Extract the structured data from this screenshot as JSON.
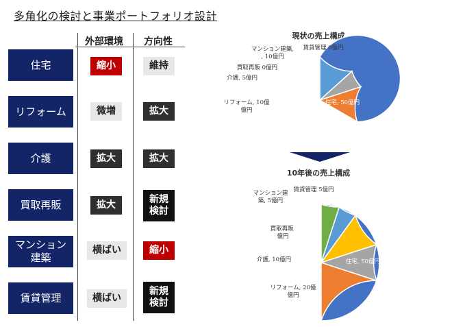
{
  "title": "多角化の検討と事業ポートフォリオ設計",
  "headers": {
    "env": "外部環境",
    "dir": "方向性"
  },
  "rows": [
    {
      "segment": "住宅",
      "env": "縮小",
      "dir": "維持"
    },
    {
      "segment": "リフォーム",
      "env": "微増",
      "dir": "拡大"
    },
    {
      "segment": "介護",
      "env": "拡大",
      "dir": "拡大"
    },
    {
      "segment": "買取再販",
      "env": "拡大",
      "dir": "新規\n検討"
    },
    {
      "segment": "マンション\n建築",
      "env": "横ばい",
      "dir": "縮小"
    },
    {
      "segment": "賃貸管理",
      "env": "横ばい",
      "dir": "新規\n検討"
    }
  ],
  "colors": {
    "navy": "#142567",
    "red": "#c00000",
    "blue": "#4472c4",
    "orange": "#ed7d31",
    "gray": "#a5a5a5",
    "yellow": "#ffc000",
    "lightblue": "#5b9bd5",
    "green": "#70ad47"
  },
  "chart_data": [
    {
      "type": "pie",
      "title": "現状の売上構成",
      "labels": [
        "住宅",
        "リフォーム",
        "介護",
        "買取再販",
        "マンション建築",
        "賃貸管理"
      ],
      "values": [
        50,
        10,
        5,
        0,
        10,
        0
      ],
      "data_labels": [
        "住宅, 50億円",
        "リフォーム, 10億円",
        "介護, 5億円",
        "買取再販 0億円",
        "マンション建築, 10億円",
        "賃貸管理 0億円"
      ]
    },
    {
      "type": "pie",
      "title": "10年後の売上構成",
      "labels": [
        "住宅",
        "リフォーム",
        "介護",
        "買取再販",
        "マンション建築",
        "賃貸管理"
      ],
      "values": [
        50,
        20,
        10,
        10,
        5,
        5
      ],
      "data_labels": [
        "住宅, 50億円",
        "リフォーム, 20億円",
        "介護, 10億円",
        "買取再販 10億円",
        "マンション建築, 5億円",
        "賃貸管理 5億円"
      ]
    }
  ]
}
